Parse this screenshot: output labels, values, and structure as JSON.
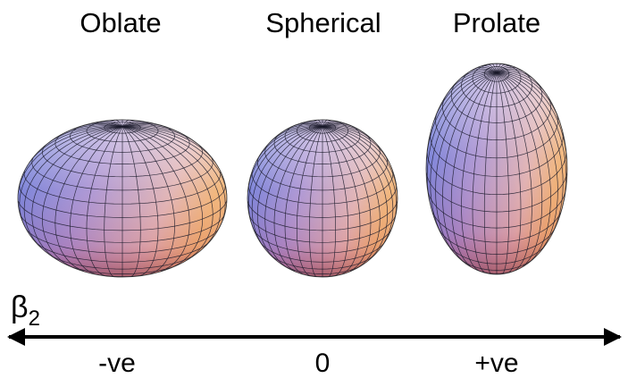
{
  "shapes": [
    {
      "label": "Oblate",
      "axis_label": "-ve"
    },
    {
      "label": "Spherical",
      "axis_label": "0"
    },
    {
      "label": "Prolate",
      "axis_label": "+ve"
    }
  ],
  "axis": {
    "symbol": "β",
    "subscript": "2"
  }
}
